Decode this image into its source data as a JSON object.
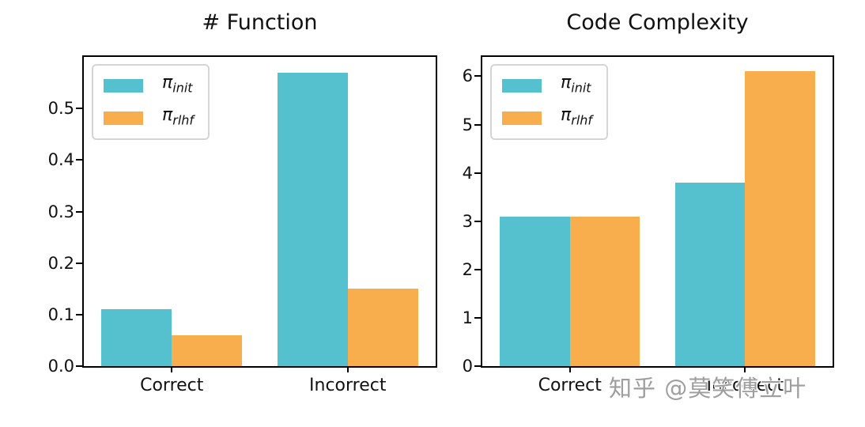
{
  "figure": {
    "background": "#ffffff"
  },
  "watermark": {
    "text": "知乎 @莫笑傅立叶"
  },
  "colors": {
    "series_init": "#55C1CE",
    "series_rlhf": "#F8AE4C",
    "spine": "#000000",
    "text": "#111111",
    "legend_border": "#d5d5d5",
    "watermark": "#9e9e9e"
  },
  "chart_data": [
    {
      "type": "bar",
      "title": "# Function",
      "categories": [
        "Correct",
        "Incorrect"
      ],
      "series": [
        {
          "name": "pi_init",
          "symbol": "π",
          "subscript": "init",
          "color": "#55C1CE",
          "values": [
            0.11,
            0.57
          ]
        },
        {
          "name": "pi_rlhf",
          "symbol": "π",
          "subscript": "rlhf",
          "color": "#F8AE4C",
          "values": [
            0.06,
            0.15
          ]
        }
      ],
      "ylim": [
        0,
        0.6
      ],
      "ytick_labels": [
        "0.0",
        "0.1",
        "0.2",
        "0.3",
        "0.4",
        "0.5"
      ],
      "ytick_values": [
        0,
        0.1,
        0.2,
        0.3,
        0.4,
        0.5
      ],
      "xlabel": "",
      "ylabel": "",
      "grid": false,
      "legend_position": "upper left"
    },
    {
      "type": "bar",
      "title": "Code Complexity",
      "categories": [
        "Correct",
        "Incorrect"
      ],
      "series": [
        {
          "name": "pi_init",
          "symbol": "π",
          "subscript": "init",
          "color": "#55C1CE",
          "values": [
            3.1,
            3.8
          ]
        },
        {
          "name": "pi_rlhf",
          "symbol": "π",
          "subscript": "rlhf",
          "color": "#F8AE4C",
          "values": [
            3.1,
            6.1
          ]
        }
      ],
      "ylim": [
        0,
        6.4
      ],
      "ytick_labels": [
        "0",
        "1",
        "2",
        "3",
        "4",
        "5",
        "6"
      ],
      "ytick_values": [
        0,
        1,
        2,
        3,
        4,
        5,
        6
      ],
      "xlabel": "",
      "ylabel": "",
      "grid": false,
      "legend_position": "upper left"
    }
  ]
}
